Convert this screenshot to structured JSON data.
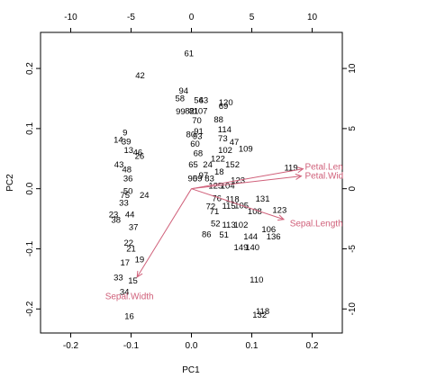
{
  "chart_data": {
    "type": "scatter",
    "subtype": "biplot",
    "title": "",
    "xlabel": "PC1",
    "ylabel": "PC2",
    "xlim": [
      -0.25,
      0.25
    ],
    "ylim": [
      -0.24,
      0.26
    ],
    "x_ticks": [
      -0.2,
      -0.1,
      0.0,
      0.1,
      0.2
    ],
    "y_ticks": [
      -0.2,
      -0.1,
      0.0,
      0.1,
      0.2
    ],
    "top_ticks": [
      -10,
      -5,
      0,
      5,
      10
    ],
    "right_ticks": [
      -10,
      -5,
      0,
      5,
      10
    ],
    "secondary_scale": 50,
    "grid": false,
    "point_color": "#000000",
    "loading_color": "#d0607a",
    "points": [
      {
        "label": "61",
        "x": -0.004,
        "y": 0.225
      },
      {
        "label": "42",
        "x": -0.085,
        "y": 0.188
      },
      {
        "label": "94",
        "x": -0.013,
        "y": 0.163
      },
      {
        "label": "58",
        "x": -0.019,
        "y": 0.15
      },
      {
        "label": "54",
        "x": 0.012,
        "y": 0.147
      },
      {
        "label": "63",
        "x": 0.02,
        "y": 0.147
      },
      {
        "label": "120",
        "x": 0.057,
        "y": 0.143
      },
      {
        "label": "69",
        "x": 0.053,
        "y": 0.137
      },
      {
        "label": "99",
        "x": -0.018,
        "y": 0.128
      },
      {
        "label": "82",
        "x": -0.003,
        "y": 0.129
      },
      {
        "label": "81",
        "x": 0.004,
        "y": 0.129
      },
      {
        "label": "107",
        "x": 0.015,
        "y": 0.129
      },
      {
        "label": "88",
        "x": 0.045,
        "y": 0.115
      },
      {
        "label": "70",
        "x": 0.009,
        "y": 0.113
      },
      {
        "label": "114",
        "x": 0.055,
        "y": 0.098
      },
      {
        "label": "9",
        "x": -0.11,
        "y": 0.093
      },
      {
        "label": "91",
        "x": 0.012,
        "y": 0.095
      },
      {
        "label": "80",
        "x": -0.001,
        "y": 0.09
      },
      {
        "label": "93",
        "x": 0.01,
        "y": 0.087
      },
      {
        "label": "14",
        "x": -0.121,
        "y": 0.081
      },
      {
        "label": "73",
        "x": 0.052,
        "y": 0.083
      },
      {
        "label": "47",
        "x": 0.071,
        "y": 0.077
      },
      {
        "label": "39",
        "x": -0.108,
        "y": 0.078
      },
      {
        "label": "60",
        "x": 0.006,
        "y": 0.074
      },
      {
        "label": "109",
        "x": 0.09,
        "y": 0.066
      },
      {
        "label": "13",
        "x": -0.104,
        "y": 0.064
      },
      {
        "label": "102",
        "x": 0.056,
        "y": 0.064
      },
      {
        "label": "46",
        "x": -0.089,
        "y": 0.06
      },
      {
        "label": "26",
        "x": -0.086,
        "y": 0.054
      },
      {
        "label": "68",
        "x": 0.011,
        "y": 0.059
      },
      {
        "label": "122",
        "x": 0.044,
        "y": 0.05
      },
      {
        "label": "43",
        "x": -0.12,
        "y": 0.04
      },
      {
        "label": "65",
        "x": 0.003,
        "y": 0.04
      },
      {
        "label": "24",
        "x": 0.027,
        "y": 0.04
      },
      {
        "label": "152",
        "x": 0.068,
        "y": 0.04
      },
      {
        "label": "48",
        "x": -0.107,
        "y": 0.032
      },
      {
        "label": "18",
        "x": 0.046,
        "y": 0.028
      },
      {
        "label": "59",
        "x": 0.01,
        "y": 0.017
      },
      {
        "label": "90",
        "x": 0.002,
        "y": 0.017
      },
      {
        "label": "83",
        "x": 0.03,
        "y": 0.017
      },
      {
        "label": "97",
        "x": 0.02,
        "y": 0.022
      },
      {
        "label": "123",
        "x": 0.077,
        "y": 0.014
      },
      {
        "label": "125",
        "x": 0.04,
        "y": 0.005
      },
      {
        "label": "104",
        "x": 0.06,
        "y": 0.005
      },
      {
        "label": "36",
        "x": -0.105,
        "y": 0.017
      },
      {
        "label": "119",
        "x": 0.165,
        "y": 0.035
      },
      {
        "label": "75",
        "x": -0.11,
        "y": -0.011
      },
      {
        "label": "50",
        "x": -0.105,
        "y": -0.004
      },
      {
        "label": "24",
        "x": -0.078,
        "y": -0.011
      },
      {
        "label": "76",
        "x": 0.042,
        "y": -0.016
      },
      {
        "label": "118",
        "x": 0.068,
        "y": -0.018
      },
      {
        "label": "131",
        "x": 0.118,
        "y": -0.017
      },
      {
        "label": "33",
        "x": -0.112,
        "y": -0.024
      },
      {
        "label": "72",
        "x": 0.032,
        "y": -0.03
      },
      {
        "label": "115",
        "x": 0.062,
        "y": -0.029
      },
      {
        "label": "105",
        "x": 0.083,
        "y": -0.028
      },
      {
        "label": "23",
        "x": -0.129,
        "y": -0.043
      },
      {
        "label": "44",
        "x": -0.102,
        "y": -0.043
      },
      {
        "label": "71",
        "x": 0.038,
        "y": -0.038
      },
      {
        "label": "108",
        "x": 0.105,
        "y": -0.038
      },
      {
        "label": "123",
        "x": 0.146,
        "y": -0.036
      },
      {
        "label": "38",
        "x": -0.125,
        "y": -0.052
      },
      {
        "label": "37",
        "x": -0.096,
        "y": -0.064
      },
      {
        "label": "52",
        "x": 0.04,
        "y": -0.058
      },
      {
        "label": "113",
        "x": 0.062,
        "y": -0.06
      },
      {
        "label": "102",
        "x": 0.082,
        "y": -0.06
      },
      {
        "label": "86",
        "x": 0.025,
        "y": -0.076
      },
      {
        "label": "51",
        "x": 0.054,
        "y": -0.077
      },
      {
        "label": "106",
        "x": 0.128,
        "y": -0.068
      },
      {
        "label": "136",
        "x": 0.136,
        "y": -0.08
      },
      {
        "label": "22",
        "x": -0.104,
        "y": -0.09
      },
      {
        "label": "21",
        "x": -0.1,
        "y": -0.1
      },
      {
        "label": "144",
        "x": 0.098,
        "y": -0.08
      },
      {
        "label": "149",
        "x": 0.082,
        "y": -0.098
      },
      {
        "label": "140",
        "x": 0.101,
        "y": -0.098
      },
      {
        "label": "17",
        "x": -0.11,
        "y": -0.123
      },
      {
        "label": "19",
        "x": -0.086,
        "y": -0.118
      },
      {
        "label": "33",
        "x": -0.121,
        "y": -0.148
      },
      {
        "label": "15",
        "x": -0.097,
        "y": -0.153
      },
      {
        "label": "110",
        "x": 0.108,
        "y": -0.152
      },
      {
        "label": "34",
        "x": -0.111,
        "y": -0.172
      },
      {
        "label": "132",
        "x": 0.113,
        "y": -0.21
      },
      {
        "label": "118",
        "x": 0.118,
        "y": -0.204
      },
      {
        "label": "16",
        "x": -0.103,
        "y": -0.212
      }
    ],
    "loadings": [
      {
        "name": "Petal.Length",
        "label": "Petal.Len",
        "x": 0.185,
        "y": 0.033
      },
      {
        "name": "Petal.Width",
        "label": "Petal.Wid",
        "x": 0.182,
        "y": 0.021
      },
      {
        "name": "Sepal.Length",
        "label": "Sepal.Length",
        "x": 0.153,
        "y": -0.051
      },
      {
        "name": "Sepal.Width",
        "label": "Sepal.Width",
        "x": -0.09,
        "y": -0.147
      }
    ],
    "loading_label_positions": [
      {
        "label": "Petal.Len",
        "x": 0.188,
        "y": 0.036
      },
      {
        "label": "Petal.Wid",
        "x": 0.188,
        "y": 0.021
      },
      {
        "label": "Sepal.Length",
        "x": 0.163,
        "y": -0.058
      },
      {
        "label": "Sepal.Width",
        "x": -0.143,
        "y": -0.179
      }
    ]
  }
}
